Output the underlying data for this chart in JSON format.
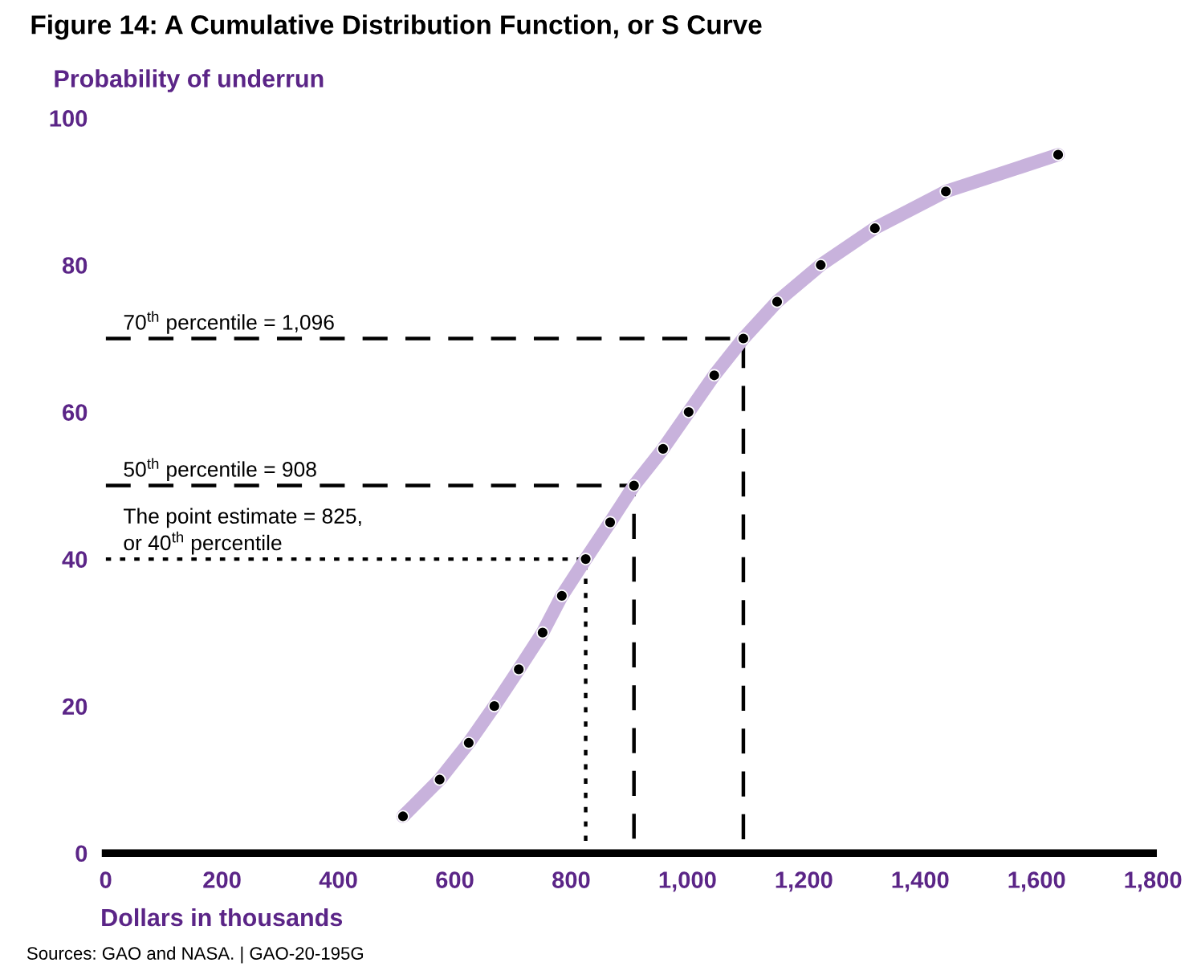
{
  "chart_data": {
    "type": "line",
    "title": "Figure 14: A Cumulative Distribution Function, or S Curve",
    "xlabel": "Dollars in thousands",
    "ylabel": "Probability of underrun",
    "xlim": [
      0,
      1800
    ],
    "xticks": [
      0,
      {
        "value": 200,
        "label": "200"
      },
      {
        "value": 400,
        "label": "400"
      },
      {
        "value": 600,
        "label": "600"
      },
      {
        "value": 800,
        "label": "800"
      },
      {
        "value": 1000,
        "label": "1,000"
      },
      {
        "value": 1200,
        "label": "1,200"
      },
      {
        "value": 1400,
        "label": "1,400"
      },
      {
        "value": 1600,
        "label": "1,600"
      },
      {
        "value": 1800,
        "label": "1,800"
      }
    ],
    "ylim": [
      0,
      100
    ],
    "yticks": [
      0,
      20,
      40,
      60,
      80,
      100
    ],
    "grid": false,
    "legend": false,
    "series": [
      {
        "color": "#c8b2dc",
        "marker": "circle",
        "line_style": "solid",
        "x": [
          511,
          574,
          624,
          668,
          710,
          751,
          784,
          825,
          867,
          908,
          958,
          1002,
          1046,
          1096,
          1154,
          1229,
          1322,
          1444,
          1637
        ],
        "values": [
          5,
          10,
          15,
          20,
          25,
          30,
          35,
          40,
          45,
          50,
          55,
          60,
          65,
          70,
          75,
          80,
          85,
          90,
          95
        ]
      },
      {
        "color": "#000000",
        "marker": "none",
        "line_style": "dashed",
        "x": [
          0,
          1096,
          1096
        ],
        "values": [
          70,
          70,
          0
        ]
      },
      {
        "color": "#000000",
        "marker": "none",
        "line_style": "dashed",
        "x": [
          0,
          908,
          908
        ],
        "values": [
          50,
          50,
          0
        ]
      },
      {
        "color": "#000000",
        "marker": "none",
        "line_style": "dotted",
        "x": [
          0,
          825,
          825
        ],
        "values": [
          40,
          40,
          0
        ]
      }
    ],
    "annotations": [
      "70$^{th}$ percentile = 1,096",
      "50$^{th}$ percentile = 908",
      "The point estimate = 825,\nor 40$^{th}$ percentile",
      "Sources: GAO and NASA. | GAO-20-195G"
    ]
  }
}
